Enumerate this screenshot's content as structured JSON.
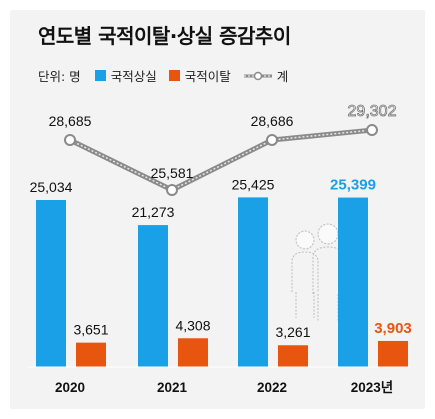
{
  "title": "연도별 국적이탈·상실 증감추이",
  "legend": {
    "unit": "단위: 명",
    "loss": "국적상실",
    "renounce": "국적이탈",
    "total": "계"
  },
  "colors": {
    "loss": "#1aa0e6",
    "renounce": "#e8550f",
    "total_line": "#8a8a8a",
    "highlight_blue": "#1aa0e6",
    "highlight_orange": "#e8550f"
  },
  "chart_data": {
    "type": "bar",
    "categories": [
      "2020",
      "2021",
      "2022",
      "2023년"
    ],
    "series": [
      {
        "name": "국적상실",
        "values": [
          25034,
          21273,
          25425,
          25399
        ],
        "labels": [
          "25,034",
          "21,273",
          "25,425",
          "25,399"
        ]
      },
      {
        "name": "국적이탈",
        "values": [
          3651,
          4308,
          3261,
          3903
        ],
        "labels": [
          "3,651",
          "4,308",
          "3,261",
          "3,903"
        ]
      },
      {
        "name": "계",
        "type": "line",
        "values": [
          28685,
          25581,
          28686,
          29302
        ],
        "labels": [
          "28,685",
          "25,581",
          "28,686",
          "29,302"
        ]
      }
    ],
    "ylim": [
      0,
      30000
    ],
    "grid": false,
    "legend_position": "top-left"
  }
}
